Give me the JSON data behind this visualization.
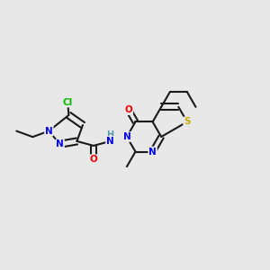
{
  "background_color": "#e8e8e8",
  "bond_color": "#1a1a1a",
  "atom_colors": {
    "N": "#0000ee",
    "O": "#ee0000",
    "S": "#ccaa00",
    "Cl": "#00bb00",
    "H": "#5599aa",
    "C": "#1a1a1a"
  },
  "figsize": [
    3.0,
    3.0
  ],
  "dpi": 100
}
